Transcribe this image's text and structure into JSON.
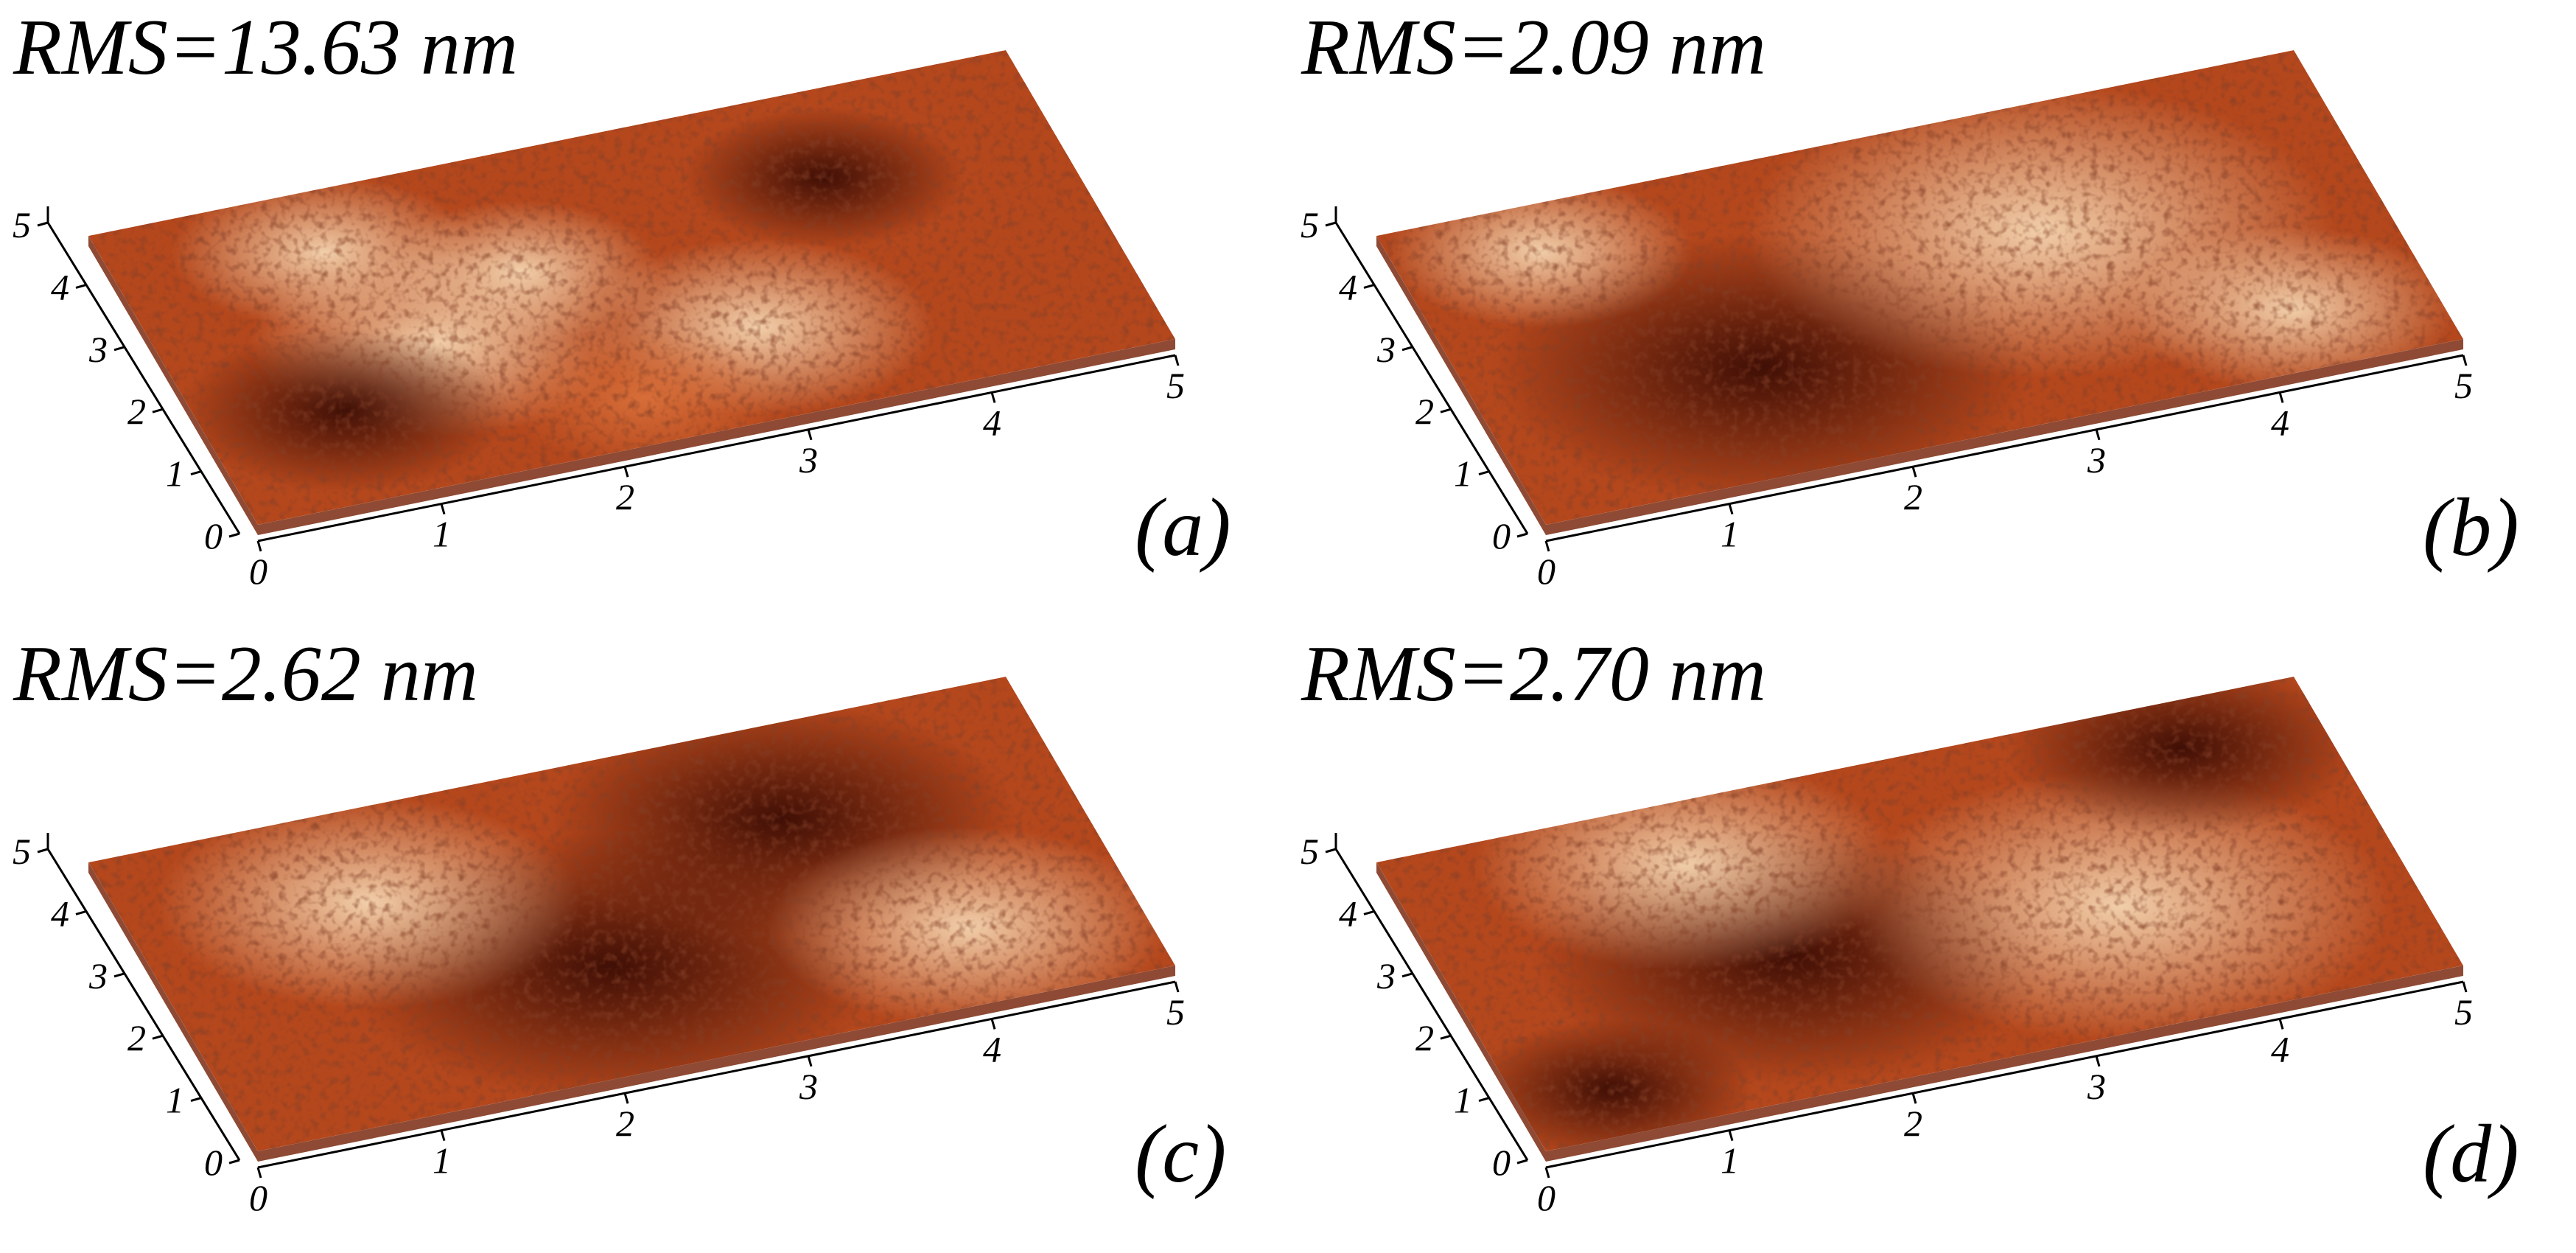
{
  "figure": {
    "panels": [
      {
        "id": "a",
        "label": "(a)",
        "rms_text": "RMS=13.63 nm",
        "tick_labels": [
          "0",
          "1",
          "2",
          "3",
          "4",
          "5"
        ]
      },
      {
        "id": "b",
        "label": "(b)",
        "rms_text": "RMS=2.09 nm",
        "tick_labels": [
          "0",
          "1",
          "2",
          "3",
          "4",
          "5"
        ]
      },
      {
        "id": "c",
        "label": "(c)",
        "rms_text": "RMS=2.62 nm",
        "tick_labels": [
          "0",
          "1",
          "2",
          "3",
          "4",
          "5"
        ]
      },
      {
        "id": "d",
        "label": "(d)",
        "rms_text": "RMS=2.70 nm",
        "tick_labels": [
          "0",
          "1",
          "2",
          "3",
          "4",
          "5"
        ]
      }
    ],
    "colors": {
      "surface_dark": "#3a0c04",
      "surface_mid": "#b5471c",
      "surface_light": "#f4d5b0",
      "axis": "#000000"
    }
  }
}
